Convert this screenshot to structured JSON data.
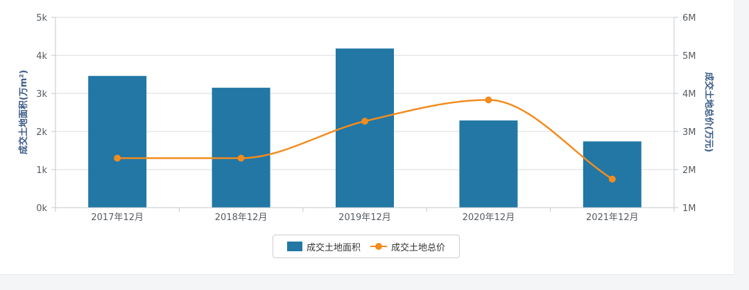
{
  "chart_data": {
    "type": "bar+line",
    "categories": [
      "2017年12月",
      "2018年12月",
      "2019年12月",
      "2020年12月",
      "2021年12月"
    ],
    "series": [
      {
        "name": "成交土地面积",
        "type": "bar",
        "axis": "left",
        "values": [
          3460,
          3150,
          4180,
          2290,
          1740
        ]
      },
      {
        "name": "成交土地总价",
        "type": "line",
        "axis": "right",
        "values": [
          2300000,
          2300000,
          3270000,
          3830000,
          1750000
        ]
      }
    ],
    "y_left": {
      "label": "成交土地面积(万m²)",
      "min": 0,
      "max": 5000,
      "ticks": [
        "0k",
        "1k",
        "2k",
        "3k",
        "4k",
        "5k"
      ]
    },
    "y_right": {
      "label": "成交土地总价(万元)",
      "min": 1000000,
      "max": 6000000,
      "ticks": [
        "1M",
        "2M",
        "3M",
        "4M",
        "5M",
        "6M"
      ]
    },
    "grid": true,
    "legend": "bottom-center",
    "colors": {
      "bar": "#2277a5",
      "line": "#f28c1e"
    }
  }
}
